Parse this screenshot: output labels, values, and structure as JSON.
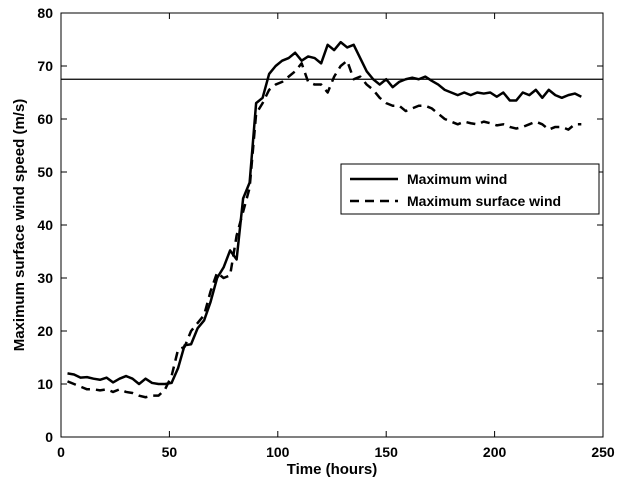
{
  "chart_data": {
    "type": "line",
    "xlabel": "Time (hours)",
    "ylabel": "Maximum surface wind speed (m/s)",
    "xlim": [
      0,
      250
    ],
    "ylim": [
      0,
      80
    ],
    "xticks": [
      0,
      50,
      100,
      150,
      200,
      250
    ],
    "yticks": [
      0,
      10,
      20,
      30,
      40,
      50,
      60,
      70,
      80
    ],
    "grid": false,
    "legend_position": "right-center",
    "reference_line": {
      "y": 67.5,
      "style": "solid-thin"
    },
    "series": [
      {
        "name": "Maximum wind",
        "style": "solid",
        "x": [
          3,
          6,
          9,
          12,
          15,
          18,
          21,
          24,
          27,
          30,
          33,
          36,
          39,
          42,
          45,
          48,
          51,
          54,
          57,
          60,
          63,
          66,
          69,
          72,
          75,
          78,
          81,
          84,
          87,
          90,
          93,
          96,
          99,
          102,
          105,
          108,
          111,
          114,
          117,
          120,
          123,
          126,
          129,
          132,
          135,
          138,
          141,
          144,
          147,
          150,
          153,
          156,
          159,
          162,
          165,
          168,
          171,
          174,
          177,
          180,
          183,
          186,
          189,
          192,
          195,
          198,
          201,
          204,
          207,
          210,
          213,
          216,
          219,
          222,
          225,
          228,
          231,
          234,
          237,
          240
        ],
        "values": [
          12,
          11.8,
          11.2,
          11.3,
          11,
          10.8,
          11.2,
          10.3,
          11,
          11.5,
          11,
          10,
          11,
          10.2,
          10,
          10,
          10.2,
          13,
          17.3,
          17.5,
          20.5,
          22,
          25.5,
          30,
          32,
          35.2,
          33.5,
          45,
          48,
          63,
          64,
          68.5,
          70,
          71,
          71.5,
          72.5,
          71,
          71.8,
          71.5,
          70.5,
          74,
          73,
          74.5,
          73.5,
          74,
          71.5,
          69,
          67.5,
          66.5,
          67.5,
          66,
          67,
          67.5,
          67.8,
          67.5,
          68,
          67.2,
          66.5,
          65.5,
          65,
          64.5,
          65,
          64.5,
          65,
          64.8,
          65,
          64.2,
          65,
          63.5,
          63.5,
          65,
          64.5,
          65.5,
          64,
          65.5,
          64.5,
          64,
          64.5,
          64.8,
          64.2
        ]
      },
      {
        "name": "Maximum surface wind",
        "style": "dashed",
        "x": [
          3,
          6,
          9,
          12,
          15,
          18,
          21,
          24,
          27,
          30,
          33,
          36,
          39,
          42,
          45,
          48,
          51,
          54,
          57,
          60,
          63,
          66,
          69,
          72,
          75,
          78,
          81,
          84,
          87,
          90,
          93,
          96,
          99,
          102,
          105,
          108,
          111,
          114,
          117,
          120,
          123,
          126,
          129,
          132,
          135,
          138,
          141,
          144,
          147,
          150,
          153,
          156,
          159,
          162,
          165,
          168,
          171,
          174,
          177,
          180,
          183,
          186,
          189,
          192,
          195,
          198,
          201,
          204,
          207,
          210,
          213,
          216,
          219,
          222,
          225,
          228,
          231,
          234,
          237,
          240
        ],
        "values": [
          10.5,
          10,
          9.5,
          9,
          9,
          8.8,
          9,
          8.5,
          9,
          8.5,
          8.3,
          7.8,
          7.5,
          7.8,
          7.8,
          9,
          11.5,
          16.5,
          17,
          20,
          21.5,
          23,
          27.5,
          31,
          30,
          30.5,
          38,
          42.5,
          47,
          61,
          63,
          65.5,
          66.5,
          67,
          68,
          69,
          70.5,
          67,
          66.5,
          66.5,
          65,
          68,
          70,
          71,
          67.5,
          68,
          66.5,
          65.5,
          64,
          63,
          62.5,
          62.5,
          61.5,
          62,
          62.5,
          62.5,
          62,
          61,
          60,
          59.5,
          59,
          59.5,
          59.2,
          59,
          59.5,
          59.2,
          58.8,
          59,
          58.5,
          58.2,
          58.5,
          59,
          59.5,
          59,
          58,
          58.5,
          58.5,
          58,
          59,
          59
        ]
      }
    ]
  }
}
